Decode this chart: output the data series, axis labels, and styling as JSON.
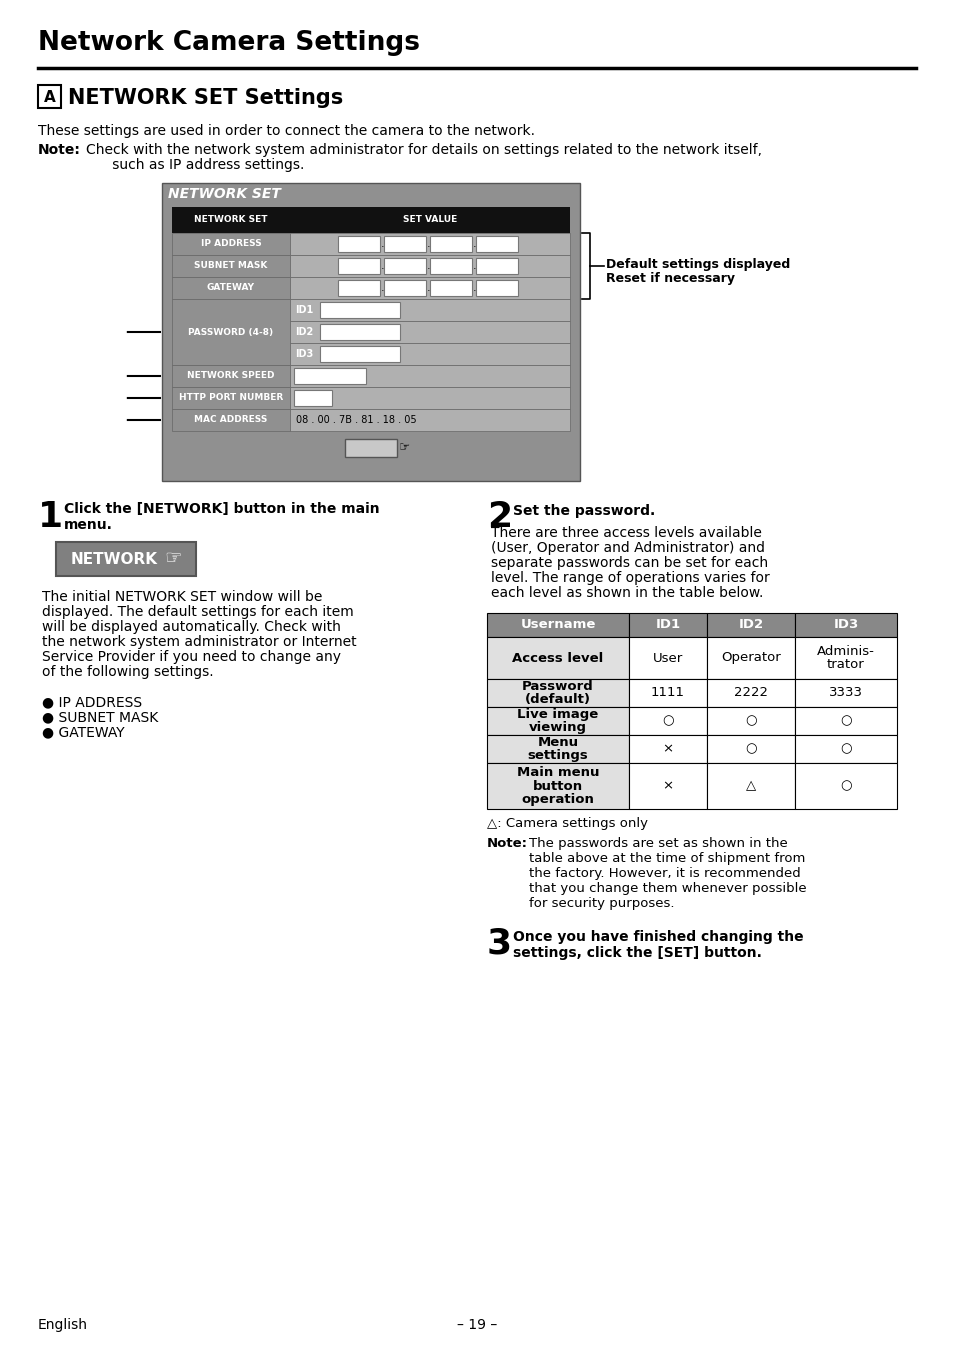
{
  "title": "Network Camera Settings",
  "section_label": "A",
  "section_title": "NETWORK SET Settings",
  "intro_text": "These settings are used in order to connect the camera to the network.",
  "note_bold": "Note:",
  "note_body1": "Check with the network system administrator for details on settings related to the network itself,",
  "note_body2": "      such as IP address settings.",
  "default_label_line1": "Default settings displayed",
  "default_label_line2": "Reset if necessary",
  "footer_left": "English",
  "footer_center": "– 19 –",
  "bg_color": "#ffffff"
}
